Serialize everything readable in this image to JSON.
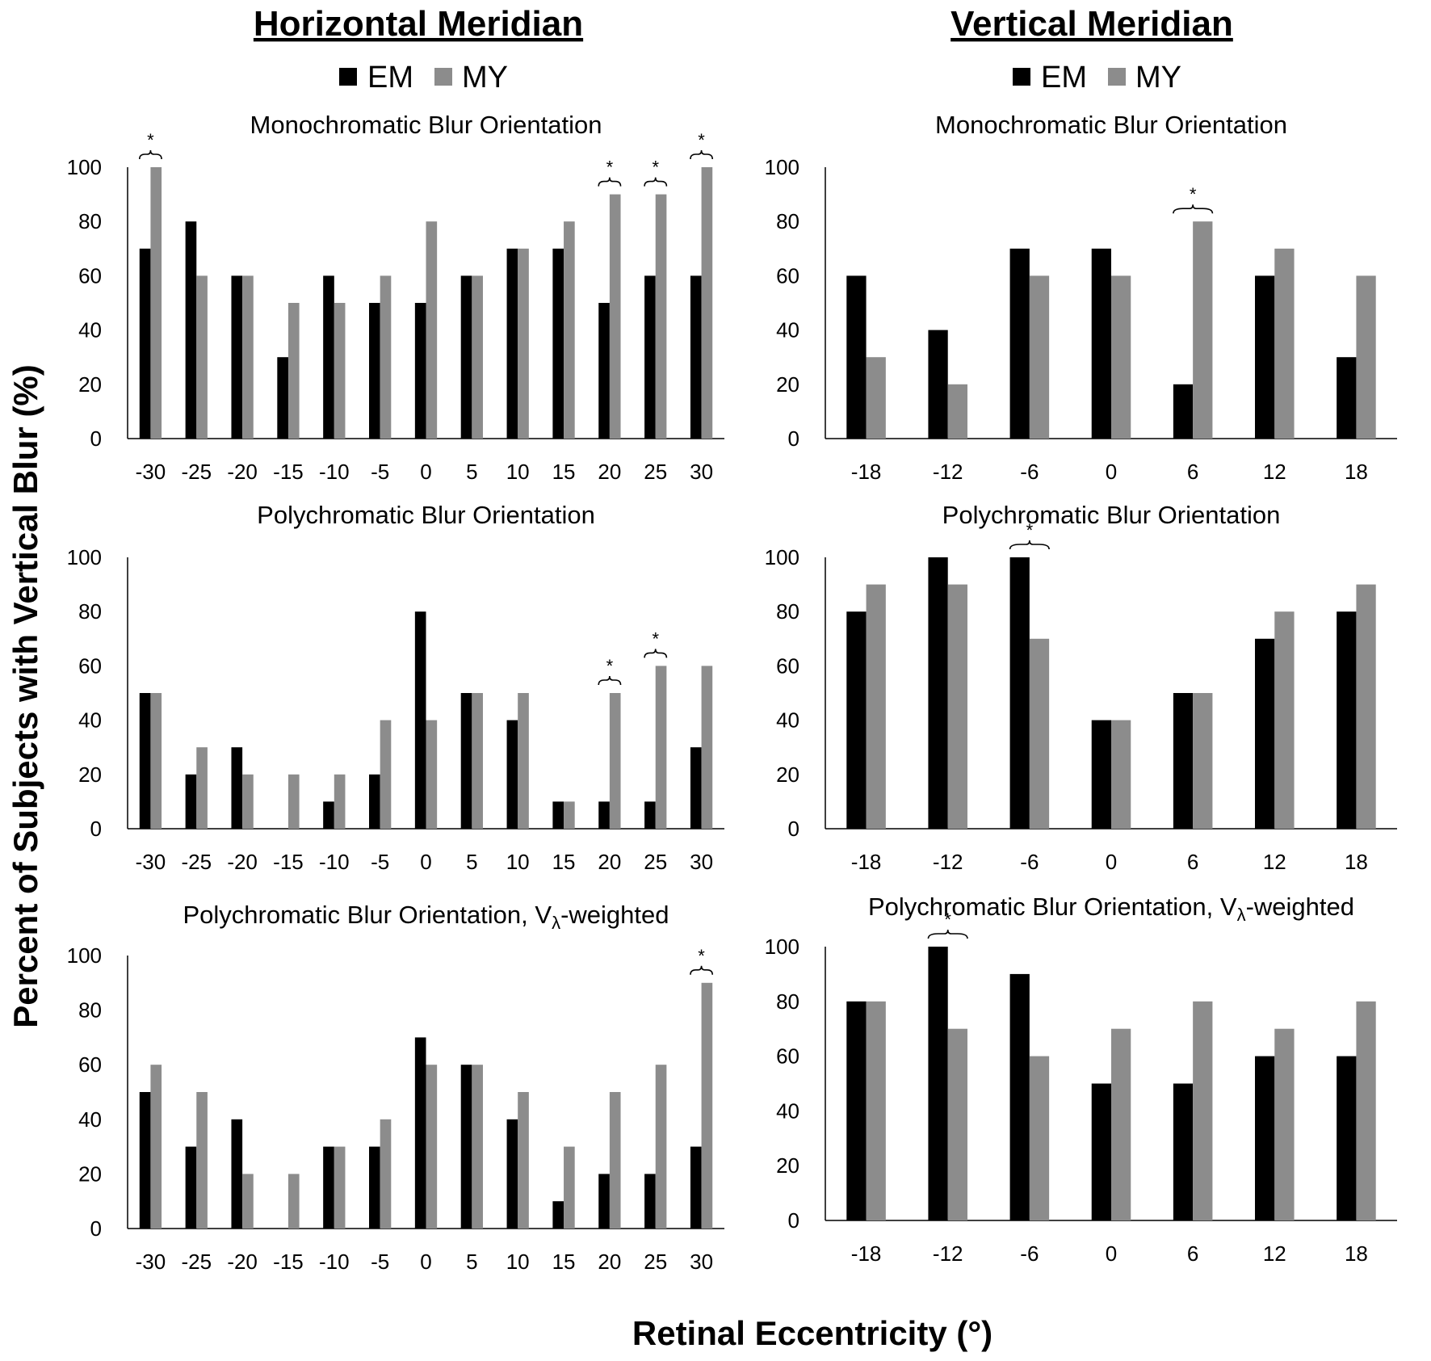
{
  "figure": {
    "y_axis_title": "Percent of Subjects with Vertical Blur (%)",
    "x_axis_title": "Retinal Eccentricity (°)",
    "columns": [
      {
        "title": "Horizontal Meridian"
      },
      {
        "title": "Vertical Meridian"
      }
    ],
    "legend": [
      {
        "name": "EM",
        "color": "#000000"
      },
      {
        "name": "MY",
        "color": "#8c8c8c"
      }
    ],
    "significance_marker": "*"
  },
  "chart_data": [
    {
      "type": "bar",
      "column": "Horizontal Meridian",
      "title": "Monochromatic Blur Orientation",
      "categories": [
        "-30",
        "-25",
        "-20",
        "-15",
        "-10",
        "-5",
        "0",
        "5",
        "10",
        "15",
        "20",
        "25",
        "30"
      ],
      "series": [
        {
          "name": "EM",
          "values": [
            70,
            80,
            60,
            30,
            60,
            50,
            50,
            60,
            70,
            70,
            50,
            60,
            60
          ]
        },
        {
          "name": "MY",
          "values": [
            100,
            60,
            60,
            50,
            50,
            60,
            80,
            60,
            70,
            80,
            90,
            90,
            100
          ]
        }
      ],
      "significant": [
        "-30",
        "20",
        "25",
        "30"
      ],
      "ylim": [
        0,
        100
      ],
      "yticks": [
        0,
        20,
        40,
        60,
        80,
        100
      ]
    },
    {
      "type": "bar",
      "column": "Vertical Meridian",
      "title": "Monochromatic Blur Orientation",
      "categories": [
        "-18",
        "-12",
        "-6",
        "0",
        "6",
        "12",
        "18"
      ],
      "series": [
        {
          "name": "EM",
          "values": [
            60,
            40,
            70,
            70,
            20,
            60,
            30
          ]
        },
        {
          "name": "MY",
          "values": [
            30,
            20,
            60,
            60,
            80,
            70,
            60
          ]
        }
      ],
      "significant": [
        "6"
      ],
      "ylim": [
        0,
        100
      ],
      "yticks": [
        0,
        20,
        40,
        60,
        80,
        100
      ]
    },
    {
      "type": "bar",
      "column": "Horizontal Meridian",
      "title": "Polychromatic Blur Orientation",
      "categories": [
        "-30",
        "-25",
        "-20",
        "-15",
        "-10",
        "-5",
        "0",
        "5",
        "10",
        "15",
        "20",
        "25",
        "30"
      ],
      "series": [
        {
          "name": "EM",
          "values": [
            50,
            20,
            30,
            0,
            10,
            20,
            80,
            50,
            40,
            10,
            10,
            10,
            30
          ]
        },
        {
          "name": "MY",
          "values": [
            50,
            30,
            20,
            20,
            20,
            40,
            40,
            50,
            50,
            10,
            50,
            60,
            60
          ]
        }
      ],
      "significant": [
        "20",
        "25"
      ],
      "ylim": [
        0,
        100
      ],
      "yticks": [
        0,
        20,
        40,
        60,
        80,
        100
      ]
    },
    {
      "type": "bar",
      "column": "Vertical Meridian",
      "title": "Polychromatic Blur Orientation",
      "categories": [
        "-18",
        "-12",
        "-6",
        "0",
        "6",
        "12",
        "18"
      ],
      "series": [
        {
          "name": "EM",
          "values": [
            80,
            100,
            100,
            40,
            50,
            70,
            80
          ]
        },
        {
          "name": "MY",
          "values": [
            90,
            90,
            70,
            40,
            50,
            80,
            90
          ]
        }
      ],
      "significant": [
        "-6"
      ],
      "ylim": [
        0,
        100
      ],
      "yticks": [
        0,
        20,
        40,
        60,
        80,
        100
      ]
    },
    {
      "type": "bar",
      "column": "Horizontal Meridian",
      "title": "Polychromatic Blur Orientation, V",
      "title_subscript": "λ",
      "title_suffix": "-weighted",
      "categories": [
        "-30",
        "-25",
        "-20",
        "-15",
        "-10",
        "-5",
        "0",
        "5",
        "10",
        "15",
        "20",
        "25",
        "30"
      ],
      "series": [
        {
          "name": "EM",
          "values": [
            50,
            30,
            40,
            0,
            30,
            30,
            70,
            60,
            40,
            10,
            20,
            20,
            30
          ]
        },
        {
          "name": "MY",
          "values": [
            60,
            50,
            20,
            20,
            30,
            40,
            60,
            60,
            50,
            30,
            50,
            60,
            90
          ]
        }
      ],
      "significant": [
        "30"
      ],
      "ylim": [
        0,
        100
      ],
      "yticks": [
        0,
        20,
        40,
        60,
        80,
        100
      ]
    },
    {
      "type": "bar",
      "column": "Vertical Meridian",
      "title": "Polychromatic Blur Orientation, V",
      "title_subscript": "λ",
      "title_suffix": "-weighted",
      "categories": [
        "-18",
        "-12",
        "-6",
        "0",
        "6",
        "12",
        "18"
      ],
      "series": [
        {
          "name": "EM",
          "values": [
            80,
            100,
            90,
            50,
            50,
            60,
            60
          ]
        },
        {
          "name": "MY",
          "values": [
            80,
            70,
            60,
            70,
            80,
            70,
            80
          ]
        }
      ],
      "significant": [
        "-12"
      ],
      "ylim": [
        0,
        100
      ],
      "yticks": [
        0,
        20,
        40,
        60,
        80,
        100
      ]
    }
  ]
}
